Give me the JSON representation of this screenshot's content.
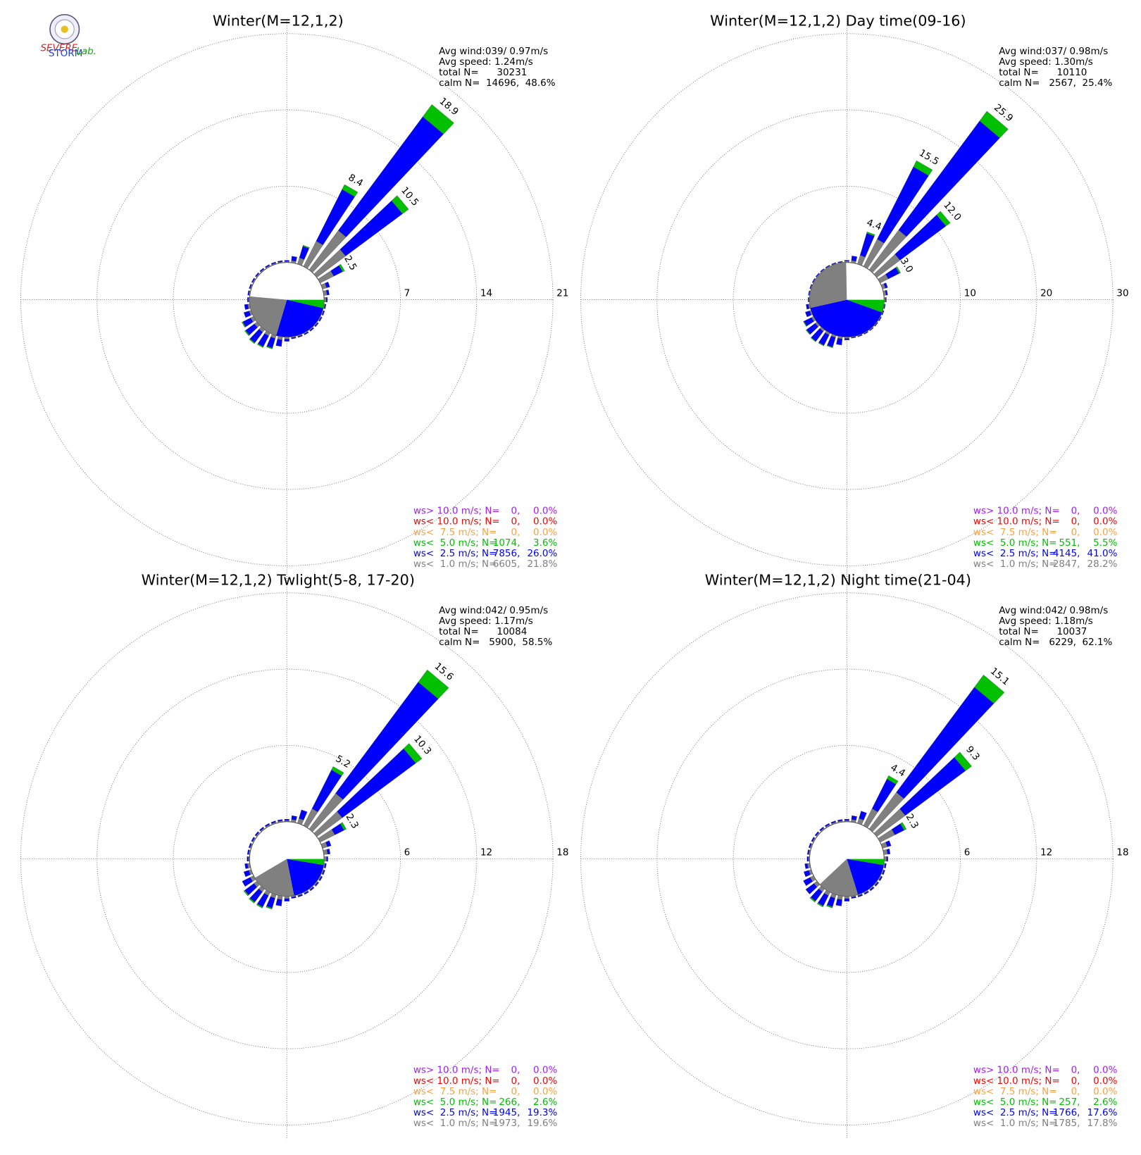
{
  "logo": {
    "texts": [
      "SEVERE",
      "STORM",
      "Lab."
    ]
  },
  "chart_data": [
    {
      "type": "windrose",
      "title": "Winter(M=12,1,2)",
      "info": [
        "Avg wind:039/ 0.97m/s",
        "Avg speed: 1.24m/s",
        "total N=      30231",
        "calm N=  14696,  48.6%"
      ],
      "rlim": [
        0,
        21
      ],
      "rticks": [
        7,
        14,
        21
      ],
      "directions": [
        0,
        10,
        20,
        30,
        40,
        50,
        60,
        70,
        80,
        90,
        100,
        110,
        120,
        130,
        140,
        150,
        160,
        170,
        180,
        190,
        200,
        210,
        220,
        230,
        240,
        250,
        260,
        270,
        280,
        290,
        300,
        310,
        320,
        330,
        340,
        350
      ],
      "series": [
        {
          "color": "#808080",
          "values": [
            0.1,
            0.2,
            0.6,
            2.6,
            4.5,
            3.3,
            1.4,
            0.4,
            0.3,
            0.2,
            0.1,
            0.1,
            0.1,
            0.1,
            0.1,
            0.1,
            0.1,
            0.1,
            0.2,
            0.3,
            0.3,
            0.3,
            0.3,
            0.3,
            0.3,
            0.2,
            0.2,
            0.1,
            0.1,
            0.1,
            0.1,
            0.1,
            0.1,
            0.1,
            0.1,
            0.1
          ]
        },
        {
          "color": "#0000ff",
          "values": [
            0.1,
            0.4,
            1.1,
            5.3,
            13.0,
            6.5,
            0.9,
            0.3,
            0.2,
            0.1,
            0.1,
            0.1,
            0.1,
            0.1,
            0.1,
            0.1,
            0.1,
            0.1,
            0.2,
            0.6,
            0.9,
            1.1,
            1.2,
            1.0,
            0.8,
            0.5,
            0.3,
            0.1,
            0.1,
            0.1,
            0.1,
            0.1,
            0.1,
            0.1,
            0.1,
            0.1
          ]
        },
        {
          "color": "#00c000",
          "values": [
            0,
            0,
            0.1,
            0.5,
            1.4,
            0.7,
            0.2,
            0,
            0,
            0,
            0,
            0,
            0,
            0,
            0,
            0,
            0,
            0,
            0,
            0,
            0.1,
            0.1,
            0.1,
            0.1,
            0.1,
            0,
            0,
            0,
            0,
            0,
            0,
            0,
            0,
            0,
            0,
            0
          ]
        }
      ],
      "total_labels": [
        null,
        null,
        null,
        "8.4",
        "18.9",
        "10.5",
        "2.5",
        null,
        null,
        null,
        null,
        null,
        null,
        null,
        null,
        null,
        null,
        null,
        null,
        null,
        null,
        null,
        null,
        null,
        null,
        null,
        null,
        null,
        null,
        null,
        null,
        null,
        null,
        null,
        null,
        null
      ],
      "legend": {
        "labels": [
          "ws> 10.0 m/s; N=",
          "ws< 10.0 m/s; N=",
          "ws<  7.5 m/s; N=",
          "ws<  5.0 m/s; N=",
          "ws<  2.5 m/s; N=",
          "ws<  1.0 m/s; N="
        ],
        "counts": [
          "0,",
          "0,",
          "0,",
          "1074,",
          "7856,",
          "6605,"
        ],
        "percent": [
          0.0,
          0.0,
          0.0,
          3.6,
          26.0,
          21.8
        ],
        "percent_labels": [
          "0.0%",
          "0.0%",
          "0.0%",
          "3.6%",
          "26.0%",
          "21.8%"
        ],
        "colors": [
          "#a020f0",
          "#ff0000",
          "#ffa040",
          "#00c000",
          "#0000ff",
          "#808080"
        ]
      }
    },
    {
      "type": "windrose",
      "title": "Winter(M=12,1,2) Day time(09-16)",
      "info": [
        "Avg wind:037/ 0.98m/s",
        "Avg speed: 1.30m/s",
        "total N=      10110",
        "calm N=   2567,  25.4%"
      ],
      "rlim": [
        0,
        30
      ],
      "rticks": [
        10,
        20,
        30
      ],
      "directions": [
        0,
        10,
        20,
        30,
        40,
        50,
        60,
        70,
        80,
        90,
        100,
        110,
        120,
        130,
        140,
        150,
        160,
        170,
        180,
        190,
        200,
        210,
        220,
        230,
        240,
        250,
        260,
        270,
        280,
        290,
        300,
        310,
        320,
        330,
        340,
        350
      ],
      "series": [
        {
          "color": "#808080",
          "values": [
            0.2,
            0.3,
            1.2,
            4.0,
            6.5,
            3.8,
            1.2,
            0.4,
            0.3,
            0.2,
            0.1,
            0.1,
            0.1,
            0.1,
            0.1,
            0.1,
            0.1,
            0.1,
            0.2,
            0.3,
            0.3,
            0.3,
            0.3,
            0.3,
            0.3,
            0.2,
            0.2,
            0.1,
            0.1,
            0.1,
            0.1,
            0.1,
            0.1,
            0.1,
            0.1,
            0.1
          ]
        },
        {
          "color": "#0000ff",
          "values": [
            0.1,
            0.6,
            3.0,
            10.6,
            17.8,
            7.5,
            1.6,
            0.3,
            0.2,
            0.1,
            0.1,
            0.1,
            0.1,
            0.1,
            0.1,
            0.1,
            0.1,
            0.1,
            0.2,
            0.8,
            1.3,
            1.5,
            1.6,
            1.4,
            1.1,
            0.6,
            0.3,
            0.1,
            0.1,
            0.1,
            0.1,
            0.1,
            0.1,
            0.1,
            0.1,
            0.1
          ]
        },
        {
          "color": "#00c000",
          "values": [
            0,
            0,
            0.2,
            0.9,
            1.6,
            0.7,
            0.2,
            0,
            0,
            0,
            0,
            0,
            0,
            0,
            0,
            0,
            0,
            0,
            0,
            0,
            0.1,
            0.1,
            0.1,
            0.1,
            0.1,
            0,
            0,
            0,
            0,
            0,
            0,
            0,
            0,
            0,
            0,
            0
          ]
        }
      ],
      "total_labels": [
        null,
        null,
        "4.4",
        "15.5",
        "25.9",
        "12.0",
        "3.0",
        null,
        null,
        null,
        null,
        null,
        null,
        null,
        null,
        null,
        null,
        null,
        null,
        null,
        null,
        null,
        null,
        null,
        null,
        null,
        null,
        null,
        null,
        null,
        null,
        null,
        null,
        null,
        null,
        null
      ],
      "legend": {
        "labels": [
          "ws> 10.0 m/s; N=",
          "ws< 10.0 m/s; N=",
          "ws<  7.5 m/s; N=",
          "ws<  5.0 m/s; N=",
          "ws<  2.5 m/s; N=",
          "ws<  1.0 m/s; N="
        ],
        "counts": [
          "0,",
          "0,",
          "0,",
          "551,",
          "4145,",
          "2847,"
        ],
        "percent": [
          0.0,
          0.0,
          0.0,
          5.5,
          41.0,
          28.2
        ],
        "percent_labels": [
          "0.0%",
          "0.0%",
          "0.0%",
          "5.5%",
          "41.0%",
          "28.2%"
        ],
        "colors": [
          "#a020f0",
          "#ff0000",
          "#ffa040",
          "#00c000",
          "#0000ff",
          "#808080"
        ]
      }
    },
    {
      "type": "windrose",
      "title": "Winter(M=12,1,2) Twlight(5-8, 17-20)",
      "info": [
        "Avg wind:042/ 0.95m/s",
        "Avg speed: 1.17m/s",
        "total N=      10084",
        "calm N=   5900,  58.5%"
      ],
      "rlim": [
        0,
        18
      ],
      "rticks": [
        6,
        12,
        18
      ],
      "directions": [
        0,
        10,
        20,
        30,
        40,
        50,
        60,
        70,
        80,
        90,
        100,
        110,
        120,
        130,
        140,
        150,
        160,
        170,
        180,
        190,
        200,
        210,
        220,
        230,
        240,
        250,
        260,
        270,
        280,
        290,
        300,
        310,
        320,
        330,
        340,
        350
      ],
      "series": [
        {
          "color": "#808080",
          "values": [
            0.1,
            0.2,
            0.4,
            1.5,
            3.5,
            2.5,
            1.3,
            0.4,
            0.3,
            0.2,
            0.1,
            0.1,
            0.1,
            0.1,
            0.1,
            0.1,
            0.1,
            0.1,
            0.2,
            0.3,
            0.3,
            0.3,
            0.3,
            0.3,
            0.3,
            0.2,
            0.2,
            0.1,
            0.1,
            0.1,
            0.1,
            0.1,
            0.1,
            0.1,
            0.1,
            0.1
          ]
        },
        {
          "color": "#0000ff",
          "values": [
            0.1,
            0.3,
            0.7,
            3.4,
            10.9,
            7.2,
            0.8,
            0.3,
            0.2,
            0.1,
            0.1,
            0.1,
            0.1,
            0.1,
            0.1,
            0.1,
            0.1,
            0.1,
            0.2,
            0.5,
            0.8,
            1.0,
            1.0,
            0.9,
            0.7,
            0.4,
            0.2,
            0.1,
            0.1,
            0.1,
            0.1,
            0.1,
            0.1,
            0.1,
            0.1,
            0.1
          ]
        },
        {
          "color": "#00c000",
          "values": [
            0,
            0,
            0,
            0.3,
            1.2,
            0.6,
            0.2,
            0,
            0,
            0,
            0,
            0,
            0,
            0,
            0,
            0,
            0,
            0,
            0,
            0,
            0.1,
            0.1,
            0.1,
            0.1,
            0,
            0,
            0,
            0,
            0,
            0,
            0,
            0,
            0,
            0,
            0,
            0
          ]
        }
      ],
      "total_labels": [
        null,
        null,
        null,
        "5.2",
        "15.6",
        "10.3",
        "2.3",
        null,
        null,
        null,
        null,
        null,
        null,
        null,
        null,
        null,
        null,
        null,
        null,
        null,
        null,
        null,
        null,
        null,
        null,
        null,
        null,
        null,
        null,
        null,
        null,
        null,
        null,
        null,
        null,
        null
      ],
      "legend": {
        "labels": [
          "ws> 10.0 m/s; N=",
          "ws< 10.0 m/s; N=",
          "ws<  7.5 m/s; N=",
          "ws<  5.0 m/s; N=",
          "ws<  2.5 m/s; N=",
          "ws<  1.0 m/s; N="
        ],
        "counts": [
          "0,",
          "0,",
          "0,",
          "266,",
          "1945,",
          "1973,"
        ],
        "percent": [
          0.0,
          0.0,
          0.0,
          2.6,
          19.3,
          19.6
        ],
        "percent_labels": [
          "0.0%",
          "0.0%",
          "0.0%",
          "2.6%",
          "19.3%",
          "19.6%"
        ],
        "colors": [
          "#a020f0",
          "#ff0000",
          "#ffa040",
          "#00c000",
          "#0000ff",
          "#808080"
        ]
      }
    },
    {
      "type": "windrose",
      "title": "Winter(M=12,1,2) Night time(21-04)",
      "info": [
        "Avg wind:042/ 0.98m/s",
        "Avg speed: 1.18m/s",
        "total N=      10037",
        "calm N=   6229,  62.1%"
      ],
      "rlim": [
        0,
        18
      ],
      "rticks": [
        6,
        12,
        18
      ],
      "directions": [
        0,
        10,
        20,
        30,
        40,
        50,
        60,
        70,
        80,
        90,
        100,
        110,
        120,
        130,
        140,
        150,
        160,
        170,
        180,
        190,
        200,
        210,
        220,
        230,
        240,
        250,
        260,
        270,
        280,
        290,
        300,
        310,
        320,
        330,
        340,
        350
      ],
      "series": [
        {
          "color": "#808080",
          "values": [
            0.1,
            0.2,
            0.4,
            1.5,
            3.6,
            2.8,
            1.3,
            0.4,
            0.3,
            0.2,
            0.1,
            0.1,
            0.1,
            0.1,
            0.1,
            0.1,
            0.1,
            0.1,
            0.2,
            0.3,
            0.3,
            0.3,
            0.3,
            0.3,
            0.3,
            0.2,
            0.2,
            0.1,
            0.1,
            0.1,
            0.1,
            0.1,
            0.1,
            0.1,
            0.1,
            0.1
          ]
        },
        {
          "color": "#0000ff",
          "values": [
            0.1,
            0.3,
            0.6,
            2.6,
            10.3,
            5.9,
            0.8,
            0.3,
            0.2,
            0.1,
            0.1,
            0.1,
            0.1,
            0.1,
            0.1,
            0.1,
            0.1,
            0.1,
            0.2,
            0.5,
            0.7,
            0.9,
            0.9,
            0.8,
            0.6,
            0.4,
            0.2,
            0.1,
            0.1,
            0.1,
            0.1,
            0.1,
            0.1,
            0.1,
            0.1,
            0.1
          ]
        },
        {
          "color": "#00c000",
          "values": [
            0,
            0,
            0,
            0.3,
            1.2,
            0.6,
            0.2,
            0,
            0,
            0,
            0,
            0,
            0,
            0,
            0,
            0,
            0,
            0,
            0,
            0,
            0.1,
            0.1,
            0.1,
            0,
            0,
            0,
            0,
            0,
            0,
            0,
            0,
            0,
            0,
            0,
            0,
            0
          ]
        }
      ],
      "total_labels": [
        null,
        null,
        null,
        "4.4",
        "15.1",
        "9.3",
        "2.3",
        null,
        null,
        null,
        null,
        null,
        null,
        null,
        null,
        null,
        null,
        null,
        null,
        null,
        null,
        null,
        null,
        null,
        null,
        null,
        null,
        null,
        null,
        null,
        null,
        null,
        null,
        null,
        null,
        null
      ],
      "legend": {
        "labels": [
          "ws> 10.0 m/s; N=",
          "ws< 10.0 m/s; N=",
          "ws<  7.5 m/s; N=",
          "ws<  5.0 m/s; N=",
          "ws<  2.5 m/s; N=",
          "ws<  1.0 m/s; N="
        ],
        "counts": [
          "0,",
          "0,",
          "0,",
          "257,",
          "1766,",
          "1785,"
        ],
        "percent": [
          0.0,
          0.0,
          0.0,
          2.6,
          17.6,
          17.8
        ],
        "percent_labels": [
          "0.0%",
          "0.0%",
          "0.0%",
          "2.6%",
          "17.6%",
          "17.8%"
        ],
        "colors": [
          "#a020f0",
          "#ff0000",
          "#ffa040",
          "#00c000",
          "#0000ff",
          "#808080"
        ]
      }
    }
  ]
}
